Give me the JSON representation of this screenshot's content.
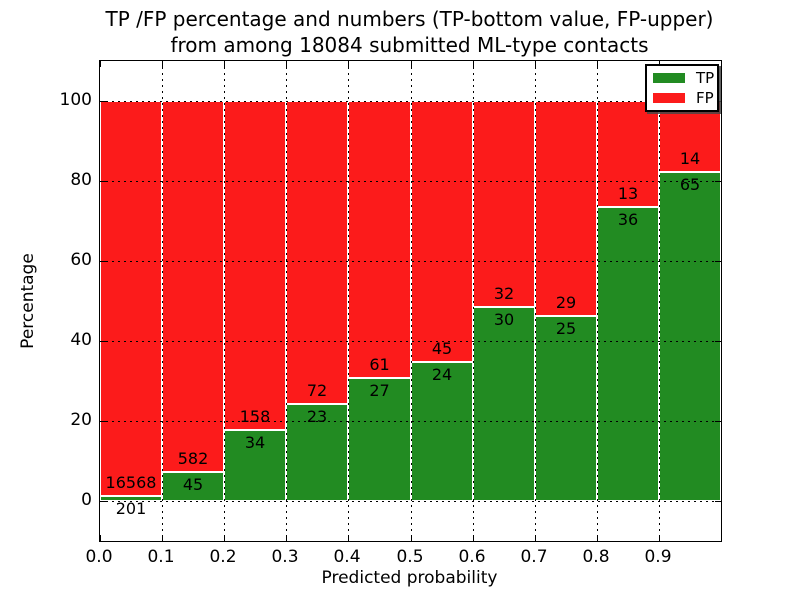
{
  "figure": {
    "title_line1": "TP /FP percentage and numbers (TP-bottom value, FP-upper)",
    "title_line2": "from among 18084 submitted ML-type contacts"
  },
  "chart_data": {
    "type": "bar",
    "stacked": true,
    "normalized": "percent",
    "title": "TP /FP percentage and numbers (TP-bottom value, FP-upper)\nfrom among 18084 submitted ML-type contacts",
    "xlabel": "Predicted probability",
    "ylabel": "Percentage",
    "total_contacts": 18084,
    "bin_start": [
      0.0,
      0.1,
      0.2,
      0.3,
      0.4,
      0.5,
      0.6,
      0.7,
      0.8,
      0.9
    ],
    "bin_width": 0.1,
    "series": [
      {
        "name": "TP",
        "color": "#228b22",
        "counts": [
          201,
          45,
          34,
          23,
          27,
          24,
          30,
          25,
          36,
          65
        ]
      },
      {
        "name": "FP",
        "color": "#fc1b1b",
        "counts": [
          16568,
          582,
          158,
          72,
          61,
          45,
          32,
          29,
          13,
          14
        ]
      }
    ],
    "xlim": [
      0.0,
      1.0
    ],
    "ylim": [
      -10,
      110
    ],
    "xticks": [
      "0.0",
      "0.1",
      "0.2",
      "0.3",
      "0.4",
      "0.5",
      "0.6",
      "0.7",
      "0.8",
      "0.9"
    ],
    "yticks": [
      0,
      20,
      40,
      60,
      80,
      100
    ],
    "grid": "dotted",
    "legend": {
      "position": "upper right",
      "entries": [
        {
          "label": "TP",
          "color": "#228b22"
        },
        {
          "label": "FP",
          "color": "#fc1b1b"
        }
      ]
    }
  }
}
